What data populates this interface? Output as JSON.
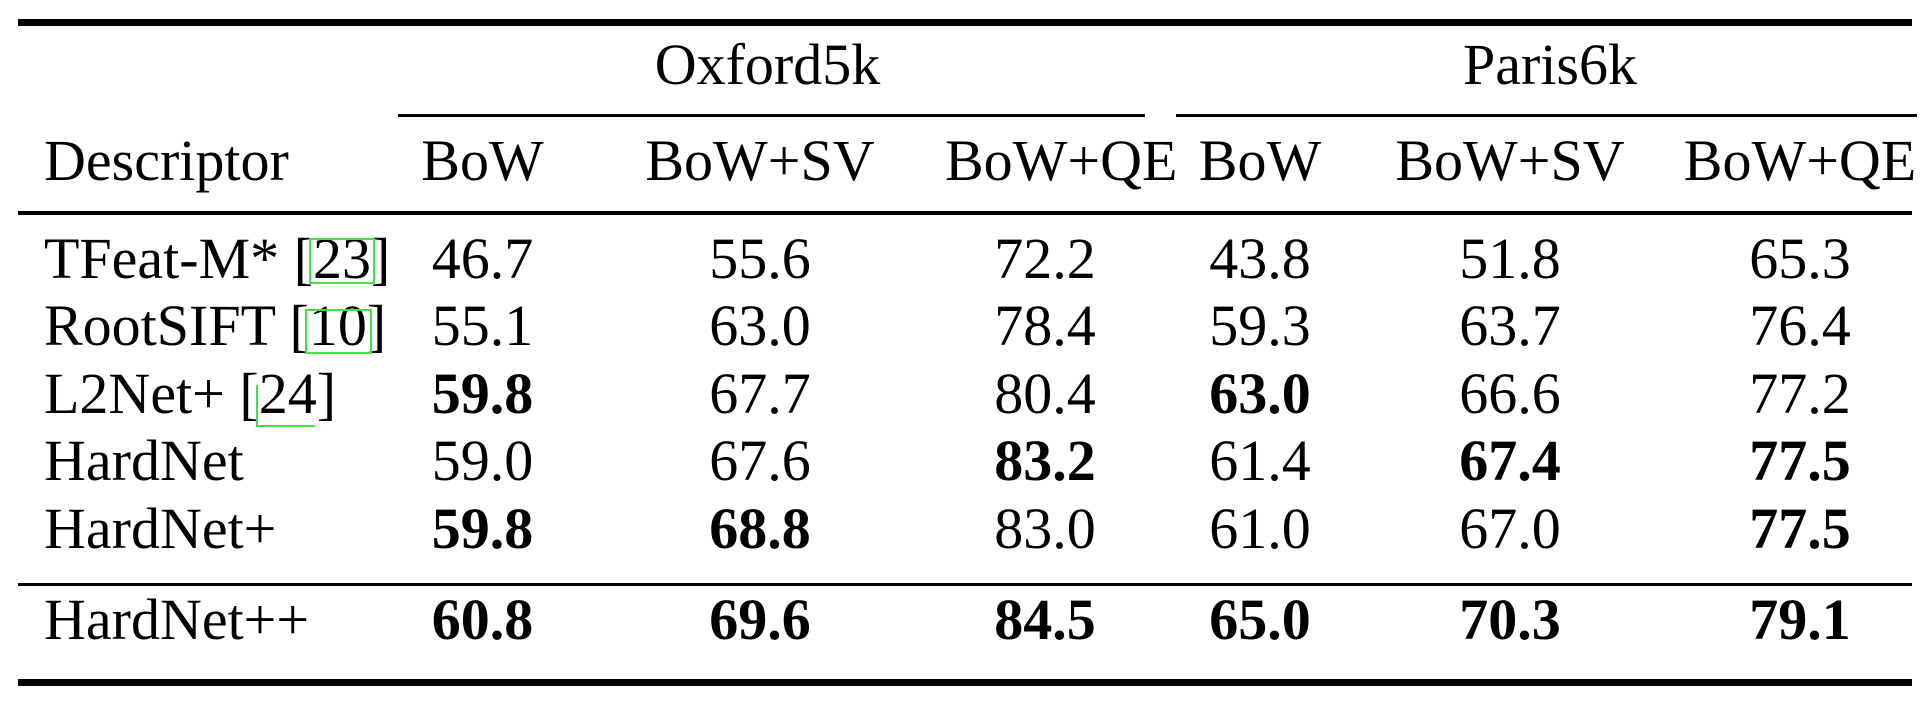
{
  "table": {
    "group_headers": [
      "Oxford5k",
      "Paris6k"
    ],
    "descriptor_header": "Descriptor",
    "metric_headers": [
      "BoW",
      "BoW+SV",
      "BoW+QE",
      "BoW",
      "BoW+SV",
      "BoW+QE"
    ],
    "cite_brackets": [
      "[",
      "]"
    ],
    "rows": [
      {
        "name": "TFeat-M*",
        "cite": "23",
        "values": [
          "46.7",
          "55.6",
          "72.2",
          "43.8",
          "51.8",
          "65.3"
        ],
        "bold": [
          false,
          false,
          false,
          false,
          false,
          false
        ]
      },
      {
        "name": "RootSIFT",
        "cite": "10",
        "values": [
          "55.1",
          "63.0",
          "78.4",
          "59.3",
          "63.7",
          "76.4"
        ],
        "bold": [
          false,
          false,
          false,
          false,
          false,
          false
        ]
      },
      {
        "name": "L2Net+",
        "cite": "24",
        "values": [
          "59.8",
          "67.7",
          "80.4",
          "63.0",
          "66.6",
          "77.2"
        ],
        "bold": [
          true,
          false,
          false,
          true,
          false,
          false
        ]
      },
      {
        "name": "HardNet",
        "values": [
          "59.0",
          "67.6",
          "83.2",
          "61.4",
          "67.4",
          "77.5"
        ],
        "bold": [
          false,
          false,
          true,
          false,
          true,
          true
        ]
      },
      {
        "name": "HardNet+",
        "values": [
          "59.8",
          "68.8",
          "83.0",
          "61.0",
          "67.0",
          "77.5"
        ],
        "bold": [
          true,
          true,
          false,
          false,
          false,
          true
        ]
      }
    ],
    "footer_row": {
      "name": "HardNet++",
      "values": [
        "60.8",
        "69.6",
        "84.5",
        "65.0",
        "70.3",
        "79.1"
      ],
      "bold": [
        true,
        true,
        true,
        true,
        true,
        true
      ]
    },
    "colors": {
      "background": "#ffffff",
      "text": "#000000",
      "rule": "#000000",
      "link_box": "#44e044"
    }
  }
}
